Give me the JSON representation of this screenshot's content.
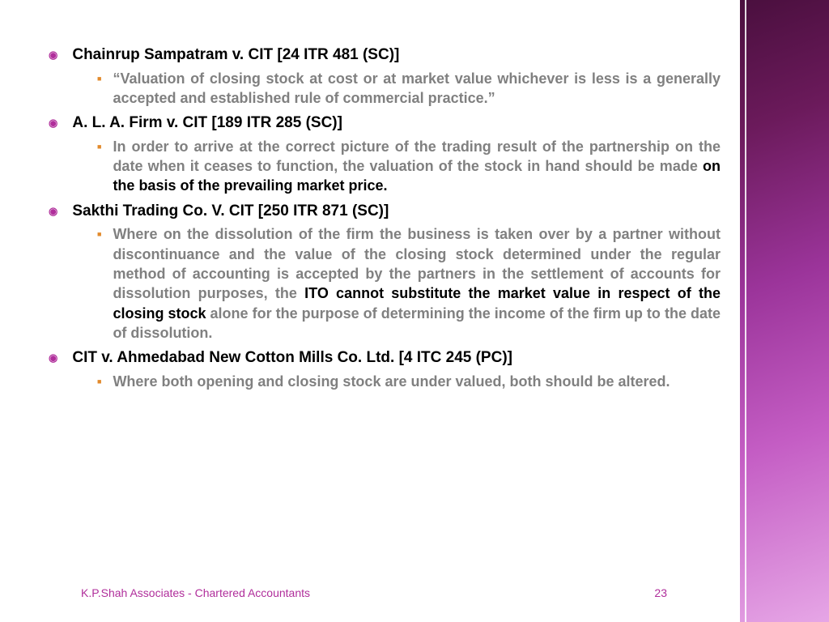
{
  "colors": {
    "bulletMain": "#b02e9b",
    "bulletSub": "#e28a2b",
    "subText": "#808080",
    "emphText": "#000000",
    "footer": "#b02e9b"
  },
  "cases": [
    {
      "title": "Chainrup Sampatram  v.  CIT   [24 ITR 481 (SC)]",
      "sub": [
        {
          "pre": "“Valuation of closing stock at cost or at market value whichever is less is a generally accepted and established rule of commercial practice.”",
          "emph": "",
          "post": ""
        }
      ]
    },
    {
      "title": "A. L. A. Firm  v.  CIT  [189 ITR 285 (SC)]",
      "sub": [
        {
          "pre": "In order to arrive at the correct picture of the trading result of the partnership on the date when it ceases to function, the valuation of the stock in hand should be made ",
          "emph": "on the basis of the prevailing market price.",
          "post": ""
        }
      ]
    },
    {
      "title": "Sakthi Trading Co.  V.  CIT   [250 ITR 871 (SC)]",
      "sub": [
        {
          "pre": "Where on the dissolution of the firm the business is taken over by a partner without discontinuance and the value of the closing stock determined under the regular method of accounting is accepted by the partners in the settlement of accounts for dissolution purposes, the ",
          "emph": "ITO cannot substitute the market value in respect of the closing stock",
          "post": " alone for the purpose of determining the income of the firm up to the date of dissolution."
        }
      ]
    },
    {
      "title": "CIT  v.  Ahmedabad New Cotton Mills Co. Ltd.  [4 ITC 245 (PC)]",
      "sub": [
        {
          "pre": "Where both opening and closing stock are under valued, both should be altered.",
          "emph": "",
          "post": ""
        }
      ]
    }
  ],
  "footer": {
    "left": "K.P.Shah Associates - Chartered Accountants",
    "page": "23"
  }
}
